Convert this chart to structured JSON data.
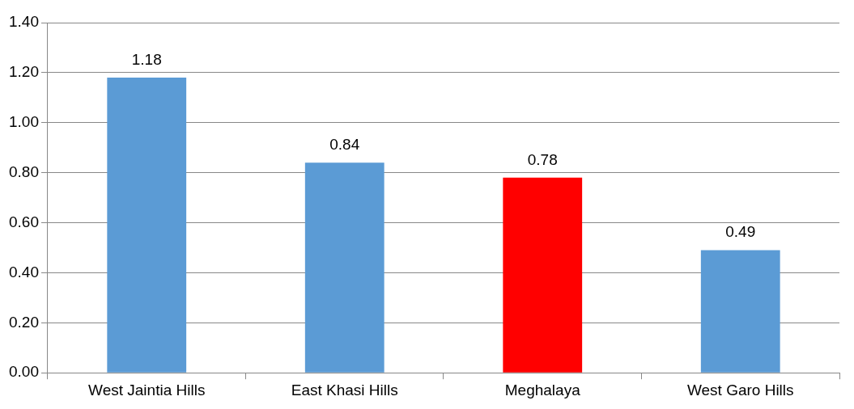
{
  "chart_data": {
    "type": "bar",
    "categories": [
      "West Jaintia Hills",
      "East Khasi Hills",
      "Meghalaya",
      "West Garo Hills"
    ],
    "values": [
      1.18,
      0.84,
      0.78,
      0.49
    ],
    "colors": [
      "#5b9bd5",
      "#5b9bd5",
      "#ff0000",
      "#5b9bd5"
    ],
    "ylim": [
      0,
      1.4
    ],
    "yticks": [
      {
        "value": 0,
        "label": "0.00"
      },
      {
        "value": 0.2,
        "label": "0.20"
      },
      {
        "value": 0.4,
        "label": "0.40"
      },
      {
        "value": 0.6,
        "label": "0.60"
      },
      {
        "value": 0.8,
        "label": "0.80"
      },
      {
        "value": 1,
        "label": "1.00"
      },
      {
        "value": 1.2,
        "label": "1.20"
      },
      {
        "value": 1.4,
        "label": "1.40"
      }
    ],
    "grid": "y",
    "legend": false,
    "data_labels": true
  }
}
